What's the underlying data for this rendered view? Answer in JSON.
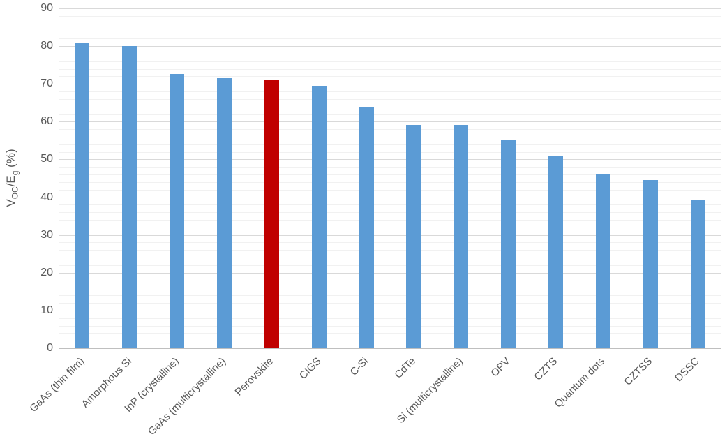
{
  "chart_data": {
    "type": "bar",
    "title": "",
    "xlabel": "",
    "ylabel": "VOC/Eg (%)",
    "ylabel_parts": {
      "v": "V",
      "oc": "OC",
      "slash_e": "/E",
      "g": "g",
      "pct": " (%)"
    },
    "categories": [
      "GaAs (thin film)",
      "Amorphous Si",
      "InP (crystalline)",
      "GaAs (multicrystalline)",
      "Perovskite",
      "CIGS",
      "C-Si",
      "CdTe",
      "Si (multicrystalline)",
      "OPV",
      "CZTS",
      "Quantum dots",
      "CZTSS",
      "DSSC"
    ],
    "values": [
      80.7,
      80.0,
      72.7,
      71.5,
      71.1,
      69.5,
      64.0,
      59.2,
      59.2,
      55.0,
      50.8,
      46.1,
      44.5,
      39.4
    ],
    "highlight_category": "Perovskite",
    "colors": {
      "bar_default": "#5B9BD5",
      "bar_highlight": "#C00000",
      "tick_label": "#595959",
      "grid_major": "#D9D9D9",
      "grid_minor": "#F1F1F1",
      "axis_line": "#BFBFBF"
    },
    "ylim": [
      0,
      90
    ],
    "yticks": [
      0,
      10,
      20,
      30,
      40,
      50,
      60,
      70,
      80,
      90
    ],
    "major_unit": 10,
    "minor_unit": 2,
    "grid": "on",
    "legend": "none",
    "x_label_rotation_deg": 45
  }
}
